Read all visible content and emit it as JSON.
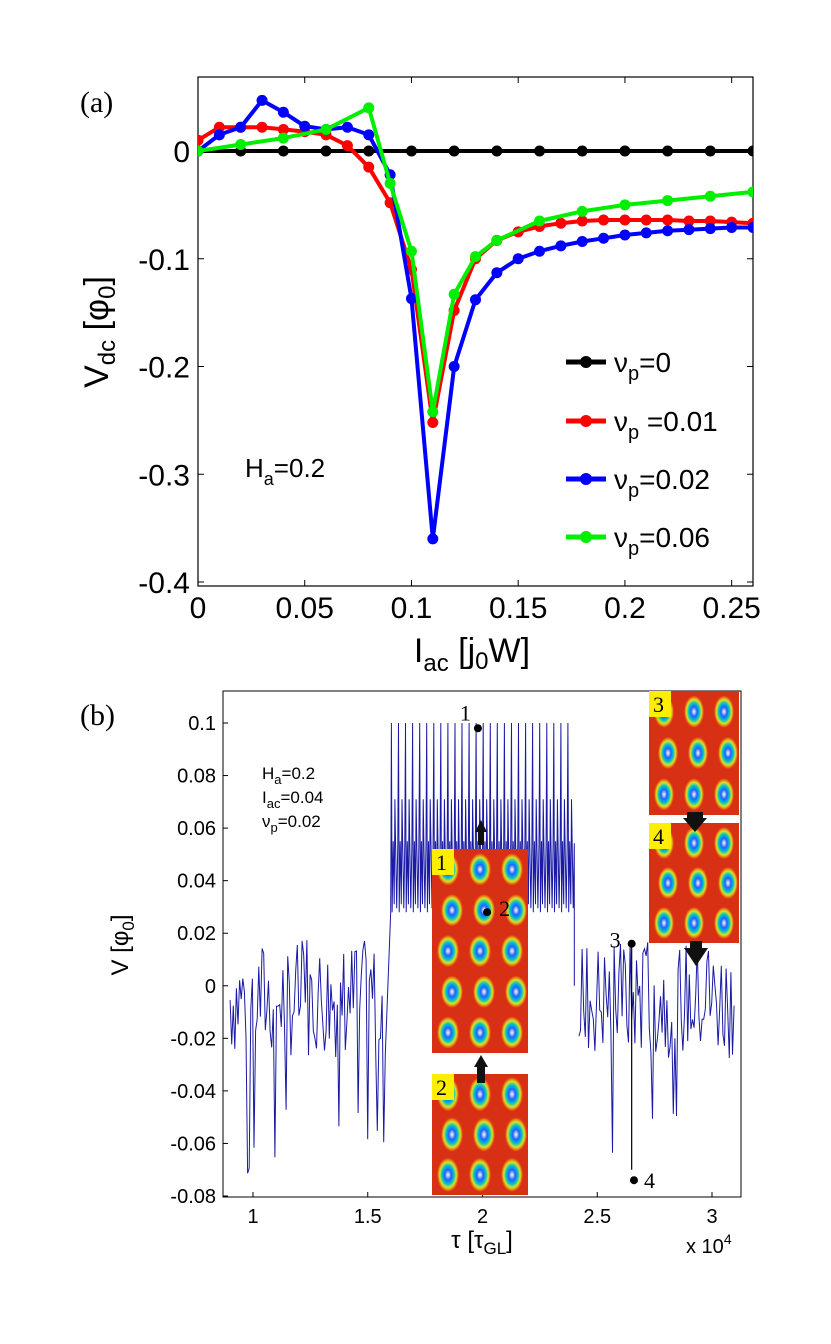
{
  "chart_data": [
    {
      "type": "line",
      "panel_label": "(a)",
      "xlabel": "I",
      "xlabel_sub": "ac",
      "xlabel_unit": " [j",
      "xlabel_unit_sub": "0",
      "xlabel_unit_end": "W]",
      "ylabel": "V",
      "ylabel_sub": "dc",
      "ylabel_unit": " [φ",
      "ylabel_unit_sub": "0",
      "ylabel_unit_end": "]",
      "xlim": [
        0,
        0.26
      ],
      "ylim": [
        -0.4,
        0.06
      ],
      "xticks": [
        "0",
        "0.05",
        "0.1",
        "0.15",
        "0.2",
        "0.25"
      ],
      "xtick_values": [
        0,
        0.05,
        0.1,
        0.15,
        0.2,
        0.25
      ],
      "yticks": [
        "0",
        "-0.1",
        "-0.2",
        "-0.3",
        "-0.4"
      ],
      "ytick_values": [
        0,
        -0.1,
        -0.2,
        -0.3,
        -0.4
      ],
      "annotation": {
        "text": "H",
        "sub": "a",
        "rest": "=0.2"
      },
      "legend": [
        {
          "sym": "ν",
          "sub": "p",
          "rest": "=0"
        },
        {
          "sym": "ν",
          "sub": "p",
          "rest": " =0.01"
        },
        {
          "sym": "ν",
          "sub": "p",
          "rest": "=0.02"
        },
        {
          "sym": "ν",
          "sub": "p",
          "rest": "=0.06"
        }
      ],
      "series": [
        {
          "name": "νp=0",
          "color": "#000000",
          "x": [
            0,
            0.02,
            0.04,
            0.06,
            0.08,
            0.1,
            0.12,
            0.14,
            0.16,
            0.18,
            0.2,
            0.22,
            0.24,
            0.26
          ],
          "y": [
            0,
            0,
            0,
            0,
            0,
            0,
            0,
            0,
            0,
            0,
            0,
            0,
            0,
            0
          ]
        },
        {
          "name": "νp=0.01",
          "color": "#ff0000",
          "x": [
            0,
            0.01,
            0.02,
            0.03,
            0.04,
            0.05,
            0.06,
            0.07,
            0.08,
            0.09,
            0.1,
            0.11,
            0.12,
            0.13,
            0.14,
            0.15,
            0.16,
            0.17,
            0.18,
            0.19,
            0.2,
            0.21,
            0.22,
            0.23,
            0.24,
            0.25,
            0.26
          ],
          "y": [
            0.01,
            0.022,
            0.022,
            0.022,
            0.02,
            0.018,
            0.015,
            0.005,
            -0.015,
            -0.048,
            -0.11,
            -0.252,
            -0.148,
            -0.1,
            -0.083,
            -0.075,
            -0.07,
            -0.067,
            -0.065,
            -0.064,
            -0.064,
            -0.064,
            -0.064,
            -0.065,
            -0.065,
            -0.066,
            -0.067
          ]
        },
        {
          "name": "νp=0.02",
          "color": "#0000ff",
          "x": [
            0,
            0.01,
            0.02,
            0.03,
            0.04,
            0.05,
            0.06,
            0.07,
            0.08,
            0.09,
            0.1,
            0.11,
            0.12,
            0.13,
            0.14,
            0.15,
            0.16,
            0.17,
            0.18,
            0.19,
            0.2,
            0.21,
            0.22,
            0.23,
            0.24,
            0.25,
            0.26
          ],
          "y": [
            0,
            0.015,
            0.022,
            0.047,
            0.036,
            0.023,
            0.02,
            0.022,
            0.015,
            -0.022,
            -0.137,
            -0.36,
            -0.2,
            -0.138,
            -0.113,
            -0.1,
            -0.093,
            -0.088,
            -0.084,
            -0.081,
            -0.078,
            -0.076,
            -0.074,
            -0.073,
            -0.072,
            -0.071,
            -0.071
          ]
        },
        {
          "name": "νp=0.06",
          "color": "#00ee00",
          "x": [
            0,
            0.02,
            0.04,
            0.06,
            0.08,
            0.09,
            0.1,
            0.11,
            0.12,
            0.13,
            0.14,
            0.16,
            0.18,
            0.2,
            0.22,
            0.24,
            0.26
          ],
          "y": [
            0,
            0.006,
            0.012,
            0.02,
            0.04,
            -0.03,
            -0.093,
            -0.242,
            -0.133,
            -0.098,
            -0.083,
            -0.065,
            -0.056,
            -0.05,
            -0.046,
            -0.042,
            -0.038
          ]
        }
      ]
    },
    {
      "type": "line",
      "panel_label": "(b)",
      "xlabel": "τ [τ",
      "xlabel_sub": "GL",
      "xlabel_end": "]",
      "ylabel": "V [φ",
      "ylabel_sub": "0",
      "ylabel_end": "]",
      "xlim": [
        0.9,
        3.1
      ],
      "ylim": [
        -0.08,
        0.11
      ],
      "xticks": [
        "1",
        "1.5",
        "2",
        "2.5",
        "3"
      ],
      "xtick_values": [
        1,
        1.5,
        2,
        2.5,
        3
      ],
      "yticks": [
        "0.1",
        "0.08",
        "0.06",
        "0.04",
        "0.02",
        "0",
        "-0.02",
        "-0.04",
        "-0.06",
        "-0.08"
      ],
      "ytick_values": [
        0.1,
        0.08,
        0.06,
        0.04,
        0.02,
        0,
        -0.02,
        -0.04,
        -0.06,
        -0.08
      ],
      "x_multiplier": "x 10",
      "x_multiplier_exp": "4",
      "params": [
        {
          "text": "H",
          "sub": "a",
          "rest": "=0.2"
        },
        {
          "text": "I",
          "sub": "ac",
          "rest": "=0.04"
        },
        {
          "text": "ν",
          "sub": "p",
          "rest": "=0.02"
        }
      ],
      "segments": [
        {
          "regime": "fluctuating",
          "x_start": 0.9,
          "x_end": 1.58,
          "y_center": -0.005,
          "y_min": -0.075,
          "y_max": 0.02
        },
        {
          "regime": "periodic",
          "x_start": 1.6,
          "x_end": 2.4,
          "y_peak": 0.1,
          "y_mid": 0.071,
          "y_band": [
            0.028,
            0.055
          ]
        },
        {
          "regime": "fluctuating",
          "x_start": 2.42,
          "x_end": 3.1,
          "y_center": -0.005,
          "y_min": -0.075,
          "y_max": 0.02
        }
      ],
      "markers": [
        {
          "label": "1",
          "x": 1.98,
          "y": 0.098
        },
        {
          "label": "2",
          "x": 2.02,
          "y": 0.028
        },
        {
          "label": "3",
          "x": 2.65,
          "y": 0.016
        },
        {
          "label": "4",
          "x": 2.66,
          "y": -0.074
        }
      ],
      "insets": [
        {
          "label": "1"
        },
        {
          "label": "2"
        },
        {
          "label": "3"
        },
        {
          "label": "4"
        }
      ],
      "color": "#1a1aa6"
    }
  ]
}
